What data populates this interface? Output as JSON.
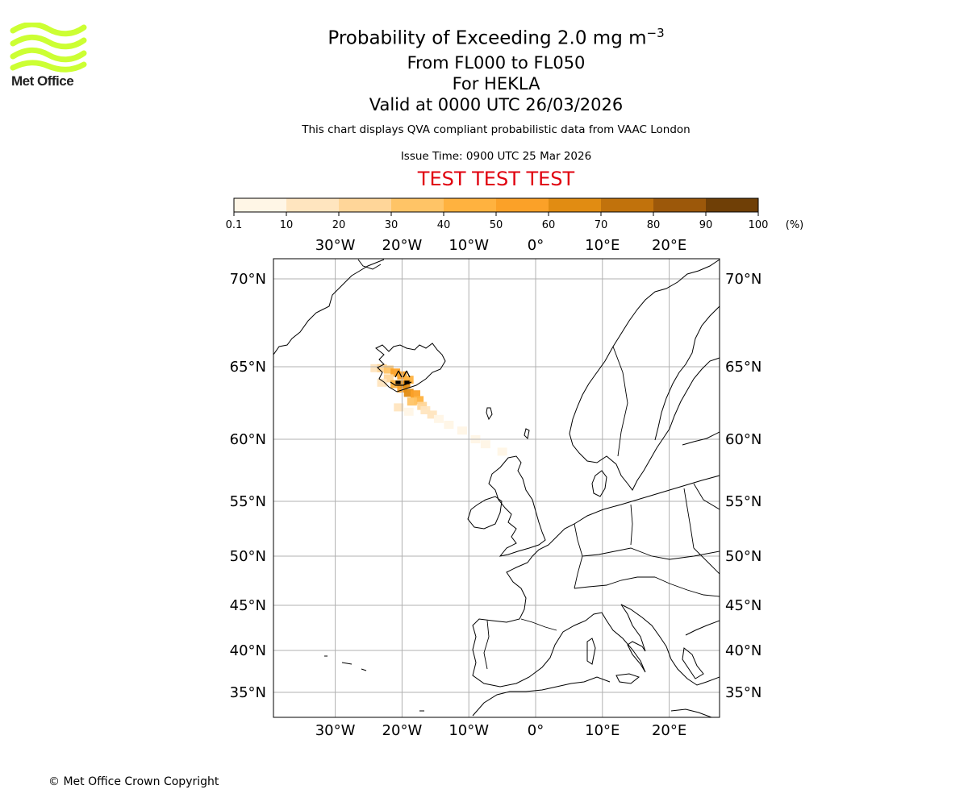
{
  "branding": {
    "logo_text": "Met Office",
    "logo_color": "#ccff33",
    "copyright": "© Met Office Crown Copyright"
  },
  "titles": {
    "main_title_text": "Probability of Exceeding 2.0 mg m",
    "main_title_exponent": "−3",
    "levels": "From FL000 to FL050",
    "volcano": "For HEKLA",
    "valid": "Valid at 0000 UTC 26/03/2026",
    "description": "This chart displays QVA compliant probabilistic data from VAAC London",
    "issue_time": "Issue Time: 0900 UTC 25 Mar 2026",
    "test_banner": "TEST TEST TEST",
    "test_color": "#e0000e"
  },
  "colorbar": {
    "boundaries": [
      0.1,
      10,
      20,
      30,
      40,
      50,
      60,
      70,
      80,
      90,
      100
    ],
    "tick_labels": [
      "0.1",
      "10",
      "20",
      "30",
      "40",
      "50",
      "60",
      "70",
      "80",
      "90",
      "100"
    ],
    "unit": "(%)",
    "colors": [
      "#fff6e6",
      "#ffe5bf",
      "#ffd699",
      "#ffc466",
      "#ffb23f",
      "#fba128",
      "#e18c12",
      "#c1720c",
      "#9c580a",
      "#6f3f06"
    ]
  },
  "map": {
    "lon_labels": [
      "30°W",
      "20°W",
      "10°W",
      "0°",
      "10°E",
      "20°E"
    ],
    "lat_labels": [
      "70°N",
      "65°N",
      "60°N",
      "55°N",
      "50°N",
      "45°N",
      "40°N",
      "35°N"
    ],
    "gridline_color": "#b0b0b0",
    "volcano_name": "HEKLA"
  },
  "chart_data": {
    "type": "heatmap",
    "title": "Probability of Exceeding 2.0 mg m−3",
    "subtitle": "From FL000 to FL050 — For HEKLA — Valid at 0000 UTC 26/03/2026",
    "units": "%",
    "value_range": [
      0.1,
      100
    ],
    "lon_range": [
      -39,
      27.5
    ],
    "lat_range": [
      33,
      71.5
    ],
    "plume_points": [
      {
        "lon": -24.0,
        "lat": 64.9,
        "p": 12
      },
      {
        "lon": -23.0,
        "lat": 64.9,
        "p": 20
      },
      {
        "lon": -22.0,
        "lat": 64.8,
        "p": 35
      },
      {
        "lon": -21.0,
        "lat": 64.6,
        "p": 50
      },
      {
        "lon": -20.0,
        "lat": 64.4,
        "p": 55
      },
      {
        "lon": -19.0,
        "lat": 64.1,
        "p": 40
      },
      {
        "lon": -22.0,
        "lat": 64.2,
        "p": 25
      },
      {
        "lon": -21.0,
        "lat": 63.8,
        "p": 45
      },
      {
        "lon": -20.0,
        "lat": 63.5,
        "p": 55
      },
      {
        "lon": -19.5,
        "lat": 63.8,
        "p": 60
      },
      {
        "lon": -19.0,
        "lat": 63.2,
        "p": 62
      },
      {
        "lon": -18.0,
        "lat": 63.1,
        "p": 50
      },
      {
        "lon": -17.5,
        "lat": 62.7,
        "p": 40
      },
      {
        "lon": -18.5,
        "lat": 62.6,
        "p": 35
      },
      {
        "lon": -17.0,
        "lat": 62.3,
        "p": 25
      },
      {
        "lon": -16.5,
        "lat": 62.0,
        "p": 18
      },
      {
        "lon": -15.5,
        "lat": 61.7,
        "p": 10
      },
      {
        "lon": -14.5,
        "lat": 61.4,
        "p": 8
      },
      {
        "lon": -13.0,
        "lat": 61.0,
        "p": 5
      },
      {
        "lon": -11.0,
        "lat": 60.6,
        "p": 3
      },
      {
        "lon": -9.0,
        "lat": 60.0,
        "p": 2
      },
      {
        "lon": -7.5,
        "lat": 59.6,
        "p": 1
      },
      {
        "lon": -5.0,
        "lat": 59.0,
        "p": 1
      },
      {
        "lon": -20.5,
        "lat": 62.2,
        "p": 12
      },
      {
        "lon": -19.0,
        "lat": 61.9,
        "p": 8
      },
      {
        "lon": -23.0,
        "lat": 63.9,
        "p": 10
      }
    ]
  }
}
